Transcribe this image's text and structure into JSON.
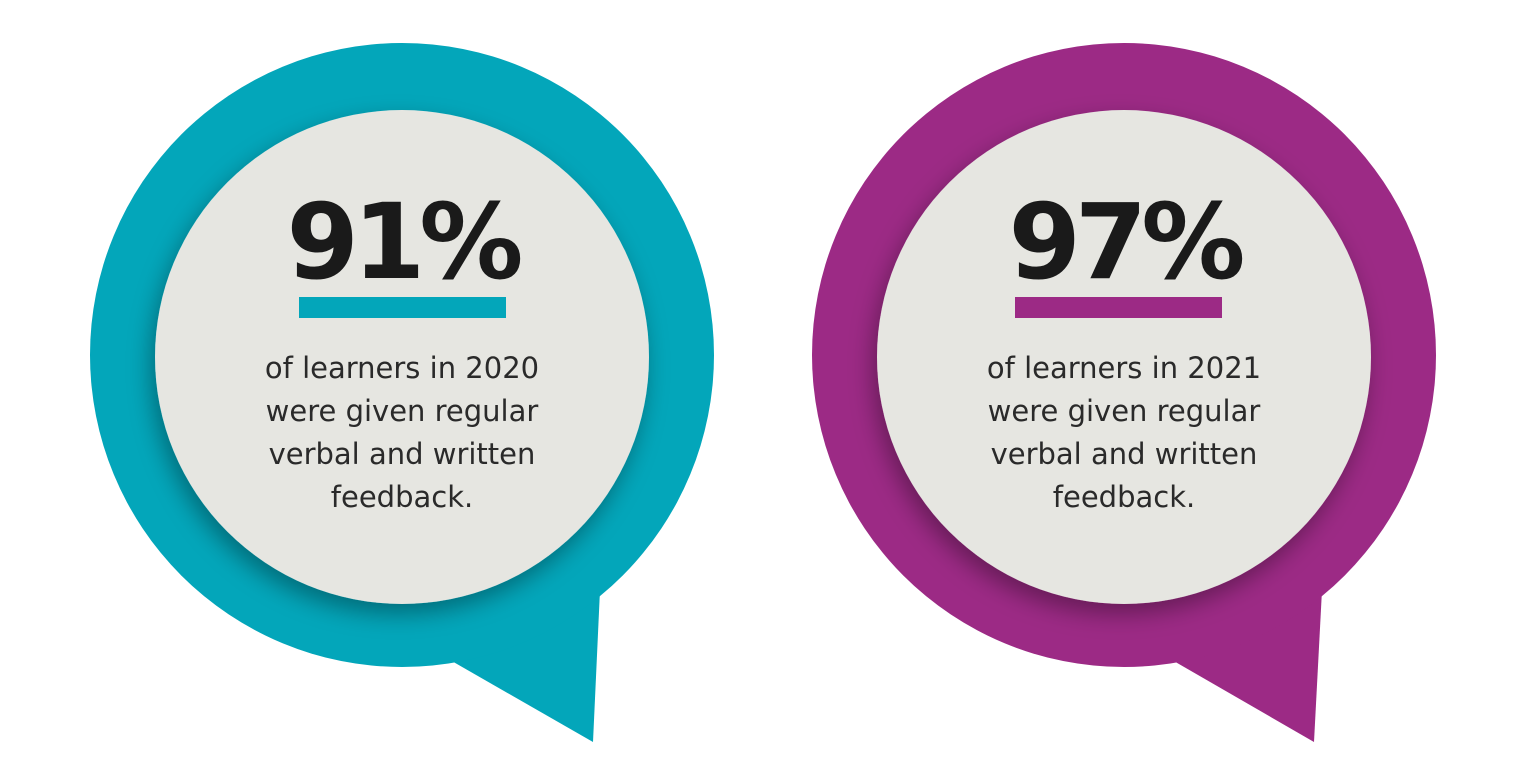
{
  "items": [
    {
      "stat": "91%",
      "lines": [
        "of learners in 2020",
        "were given regular",
        "verbal and written",
        "feedback."
      ]
    },
    {
      "stat": "97%",
      "lines": [
        "of learners in 2021",
        "were given regular",
        "verbal and written",
        "feedback."
      ]
    }
  ]
}
